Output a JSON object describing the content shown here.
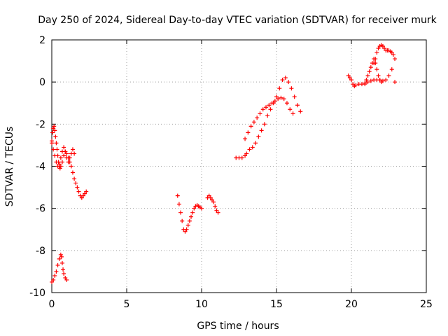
{
  "chart_data": {
    "type": "scatter",
    "title": "Day 250 of 2024, Sidereal Day-to-day VTEC variation (SDTVAR) for receiver murk",
    "xlabel": "GPS time / hours",
    "ylabel": "SDTVAR / TECUs",
    "xlim": [
      0,
      25
    ],
    "ylim": [
      -10,
      2
    ],
    "xticks": [
      "0",
      "5",
      "10",
      "15",
      "20",
      "25"
    ],
    "yticks": [
      "-10",
      "-8",
      "-6",
      "-4",
      "-2",
      "0",
      "2"
    ],
    "grid": true,
    "marker": "plus",
    "color": "#ff0000",
    "series": [
      {
        "x": [
          0.0,
          0.05,
          0.1,
          0.15,
          0.2,
          0.25,
          0.3,
          0.35,
          0.4,
          0.45,
          0.5,
          0.55,
          0.6,
          0.7,
          0.8,
          0.9,
          1.0,
          1.1,
          1.2,
          1.3,
          1.4,
          1.5,
          1.6,
          1.7,
          1.8,
          1.9,
          2.0,
          2.1,
          2.2,
          2.3
        ],
        "y": [
          -2.8,
          -2.4,
          -2.2,
          -2.1,
          -2.3,
          -2.6,
          -2.9,
          -3.2,
          -3.5,
          -3.8,
          -4.0,
          -4.1,
          -4.0,
          -3.8,
          -3.5,
          -3.3,
          -3.4,
          -3.6,
          -3.8,
          -4.0,
          -4.3,
          -4.6,
          -4.8,
          -5.0,
          -5.2,
          -5.4,
          -5.5,
          -5.4,
          -5.3,
          -5.2
        ]
      },
      {
        "x": [
          0.0,
          0.1,
          0.2,
          0.3,
          0.4,
          0.5,
          0.6,
          0.7,
          0.8,
          0.9,
          1.0,
          1.1,
          1.2,
          1.3,
          1.4,
          1.5
        ],
        "y": [
          -2.9,
          -3.2,
          -3.5,
          -3.8,
          -4.0,
          -3.9,
          -3.6,
          -3.3,
          -3.1,
          -3.3,
          -3.6,
          -3.8,
          -3.6,
          -3.4,
          -3.2,
          -3.4
        ]
      },
      {
        "x": [
          0.0,
          0.1,
          0.2,
          0.3,
          0.4,
          0.5,
          0.6,
          0.65,
          0.7,
          0.75,
          0.8,
          0.9,
          1.0
        ],
        "y": [
          -9.5,
          -9.4,
          -9.2,
          -9.0,
          -8.7,
          -8.4,
          -8.2,
          -8.3,
          -8.6,
          -8.9,
          -9.1,
          -9.3,
          -9.4
        ]
      },
      {
        "x": [
          8.4,
          8.5,
          8.6,
          8.7,
          8.8,
          8.9,
          9.0,
          9.1,
          9.2,
          9.3,
          9.4,
          9.5,
          9.6,
          9.7,
          9.8,
          9.9,
          10.0
        ],
        "y": [
          -5.4,
          -5.8,
          -6.2,
          -6.6,
          -7.0,
          -7.1,
          -7.0,
          -6.8,
          -6.6,
          -6.4,
          -6.2,
          -6.0,
          -5.9,
          -5.85,
          -5.9,
          -5.95,
          -6.0
        ]
      },
      {
        "x": [
          10.4,
          10.5,
          10.6,
          10.7,
          10.8,
          10.9,
          11.0,
          11.1
        ],
        "y": [
          -5.5,
          -5.4,
          -5.5,
          -5.6,
          -5.7,
          -5.9,
          -6.1,
          -6.2
        ]
      },
      {
        "x": [
          12.3,
          12.5,
          12.7,
          12.9,
          13.0,
          13.2,
          13.4,
          13.6,
          13.8,
          14.0,
          14.2,
          14.4,
          14.6,
          14.8,
          15.0,
          15.2,
          15.4,
          15.6,
          15.8,
          16.0,
          16.2,
          16.4,
          16.6
        ],
        "y": [
          -3.6,
          -3.6,
          -3.6,
          -3.5,
          -3.4,
          -3.2,
          -3.1,
          -2.9,
          -2.6,
          -2.3,
          -2.0,
          -1.6,
          -1.3,
          -1.0,
          -0.7,
          -0.3,
          0.1,
          0.2,
          0.0,
          -0.3,
          -0.7,
          -1.1,
          -1.4
        ]
      },
      {
        "x": [
          12.9,
          13.1,
          13.3,
          13.5,
          13.7,
          13.9,
          14.1,
          14.3,
          14.5,
          14.7,
          14.9,
          15.1,
          15.3,
          15.5,
          15.7,
          15.9,
          16.1
        ],
        "y": [
          -2.7,
          -2.4,
          -2.1,
          -1.9,
          -1.7,
          -1.5,
          -1.3,
          -1.2,
          -1.1,
          -1.0,
          -0.9,
          -0.8,
          -0.75,
          -0.8,
          -1.0,
          -1.3,
          -1.5
        ]
      },
      {
        "x": [
          19.8,
          19.9,
          20.0,
          20.1,
          20.2,
          20.3,
          20.5,
          20.7,
          20.9,
          21.1,
          21.3,
          21.5,
          21.7,
          21.9,
          22.1,
          22.3,
          22.5,
          22.7,
          22.9
        ],
        "y": [
          0.3,
          0.2,
          0.1,
          -0.1,
          -0.2,
          -0.15,
          -0.1,
          -0.1,
          -0.05,
          0.0,
          0.05,
          0.1,
          0.1,
          0.1,
          0.05,
          0.1,
          0.3,
          0.6,
          0.0
        ]
      },
      {
        "x": [
          20.9,
          21.0,
          21.1,
          21.2,
          21.3,
          21.4,
          21.5,
          21.6,
          21.7,
          21.8,
          21.9,
          22.0
        ],
        "y": [
          -0.1,
          0.1,
          0.3,
          0.5,
          0.7,
          0.9,
          1.1,
          0.9,
          0.6,
          0.3,
          0.1,
          0.0
        ]
      },
      {
        "x": [
          21.5,
          21.6,
          21.7,
          21.8,
          21.9,
          22.0,
          22.1,
          22.2,
          22.3,
          22.4,
          22.5,
          22.6,
          22.7,
          22.8,
          22.9
        ],
        "y": [
          0.9,
          1.1,
          1.4,
          1.6,
          1.7,
          1.75,
          1.7,
          1.6,
          1.5,
          1.5,
          1.5,
          1.45,
          1.4,
          1.3,
          1.1
        ]
      }
    ]
  }
}
